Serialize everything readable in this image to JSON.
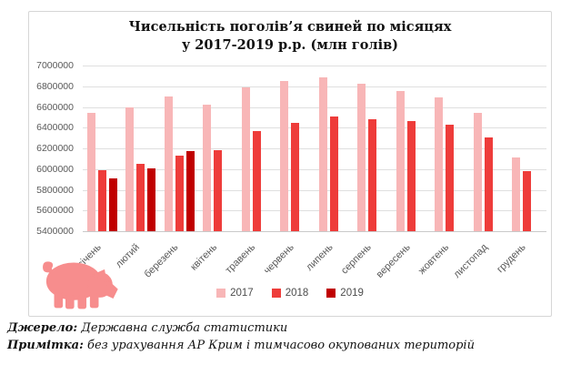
{
  "title": {
    "line1": "Чисельність поголів’я свиней по місяцях",
    "line2": "у 2017-2019 р.р. (млн голів)"
  },
  "chart_data": {
    "type": "bar",
    "title": "Чисельність поголів’я свиней по місяцях у 2017-2019 р.р. (млн голів)",
    "categories": [
      "січень",
      "лютий",
      "березень",
      "квітень",
      "травень",
      "червень",
      "липень",
      "серпень",
      "вересень",
      "жовтень",
      "листопад",
      "грудень"
    ],
    "series": [
      {
        "name": "2017",
        "color": "#f8b6b7",
        "values": [
          6540000,
          6600000,
          6700000,
          6620000,
          6790000,
          6850000,
          6890000,
          6820000,
          6750000,
          6690000,
          6540000,
          6110000
        ]
      },
      {
        "name": "2018",
        "color": "#ee3c3a",
        "values": [
          5990000,
          6050000,
          6130000,
          6180000,
          6370000,
          6450000,
          6510000,
          6480000,
          6460000,
          6430000,
          6310000,
          5980000
        ]
      },
      {
        "name": "2019",
        "color": "#c00000",
        "values": [
          5910000,
          6010000,
          6170000,
          null,
          null,
          null,
          null,
          null,
          null,
          null,
          null,
          null
        ]
      }
    ],
    "ylim": [
      5400000,
      7000000
    ],
    "ytick_step": 200000,
    "yticks": [
      "7000000",
      "6800000",
      "6600000",
      "6400000",
      "6200000",
      "6000000",
      "5800000",
      "5600000",
      "5400000"
    ],
    "grid": true,
    "legend_position": "bottom",
    "xlabel": "",
    "ylabel": ""
  },
  "icons": {
    "pig": "pig-icon"
  },
  "colors": {
    "grid": "#dfdfdf",
    "axis_text": "#595959",
    "frame_border": "#d6d6d6",
    "pig": "#f78d8d"
  },
  "footer": {
    "source_label": "Джерело:",
    "source_text": " Державна служба статистики",
    "note_label": "Примітка:",
    "note_text": " без урахування АР Крим і тимчасово окупованих територій"
  }
}
